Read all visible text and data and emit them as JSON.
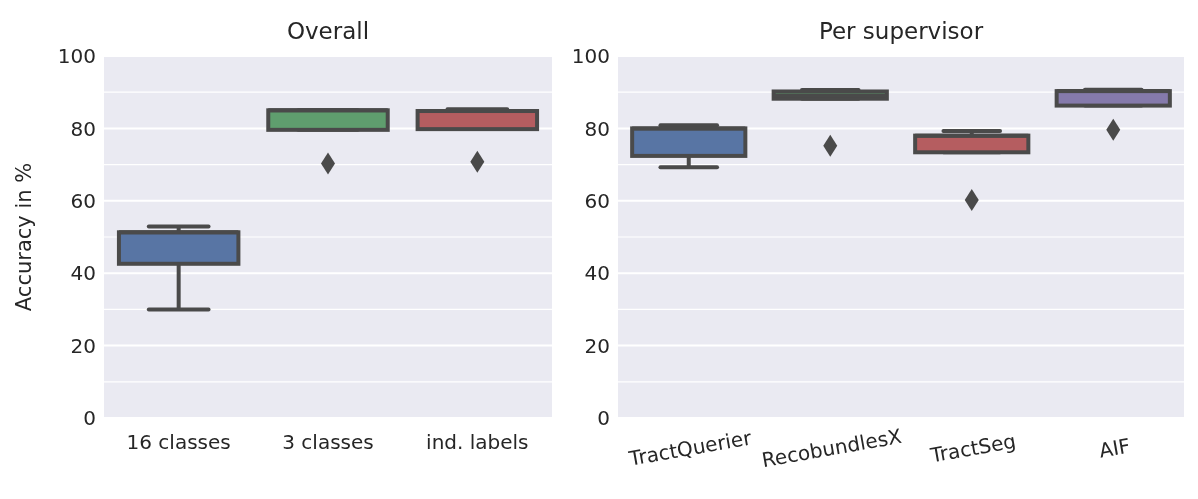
{
  "chart_data": [
    {
      "type": "box",
      "title": "Overall",
      "ylabel": "Accuracy in %",
      "categories": [
        "16 classes",
        "3 classes",
        "ind. labels"
      ],
      "colors": [
        "#5875a4",
        "#5f9e6e",
        "#b55d60"
      ],
      "boxes": [
        {
          "low": 30,
          "q1": 42.6,
          "median": 51.3,
          "q3": 51.3,
          "high": 52.9
        },
        {
          "low": 79.6,
          "q1": 79.6,
          "median": 85,
          "q3": 85,
          "high": 85,
          "outliers": [
            70.3
          ]
        },
        {
          "low": 79.8,
          "q1": 79.8,
          "median": 84.8,
          "q3": 84.8,
          "high": 85.3,
          "outliers": [
            70.8
          ]
        }
      ],
      "ylim": [
        0,
        100
      ],
      "yticks": [
        0,
        {
          "value": 10,
          "label": null
        },
        20,
        {
          "value": 30,
          "label": null
        },
        40,
        {
          "value": 50,
          "label": null
        },
        60,
        {
          "value": 70,
          "label": null
        },
        80,
        {
          "value": 90,
          "label": null
        },
        100
      ],
      "grid": "y"
    },
    {
      "type": "box",
      "title": "Per supervisor",
      "categories": [
        "TractQuerier",
        "RecobundlesX",
        "TractSeg",
        "AIF"
      ],
      "colors": [
        "#5875a4",
        "#5f9e6e",
        "#b55d60",
        "#857aab"
      ],
      "boxes": [
        {
          "low": 69.3,
          "q1": 72.4,
          "median": 80,
          "q3": 80,
          "high": 80.9
        },
        {
          "low": 88.2,
          "q1": 88.2,
          "median": 89,
          "q3": 90.2,
          "high": 90.6,
          "outliers": [
            75.2
          ]
        },
        {
          "low": 73.4,
          "q1": 73.4,
          "median": 78,
          "q3": 78,
          "high": 79.3,
          "outliers": [
            60.2
          ]
        },
        {
          "low": 86.3,
          "q1": 86.3,
          "median": 90.3,
          "q3": 90.3,
          "high": 90.7,
          "outliers": [
            79.6
          ]
        }
      ],
      "ylim": [
        0,
        100
      ],
      "yticks": [
        0,
        {
          "value": 10,
          "label": null
        },
        20,
        {
          "value": 30,
          "label": null
        },
        40,
        {
          "value": 50,
          "label": null
        },
        60,
        {
          "value": 70,
          "label": null
        },
        80,
        {
          "value": 90,
          "label": null
        },
        100
      ],
      "grid": "y"
    }
  ]
}
